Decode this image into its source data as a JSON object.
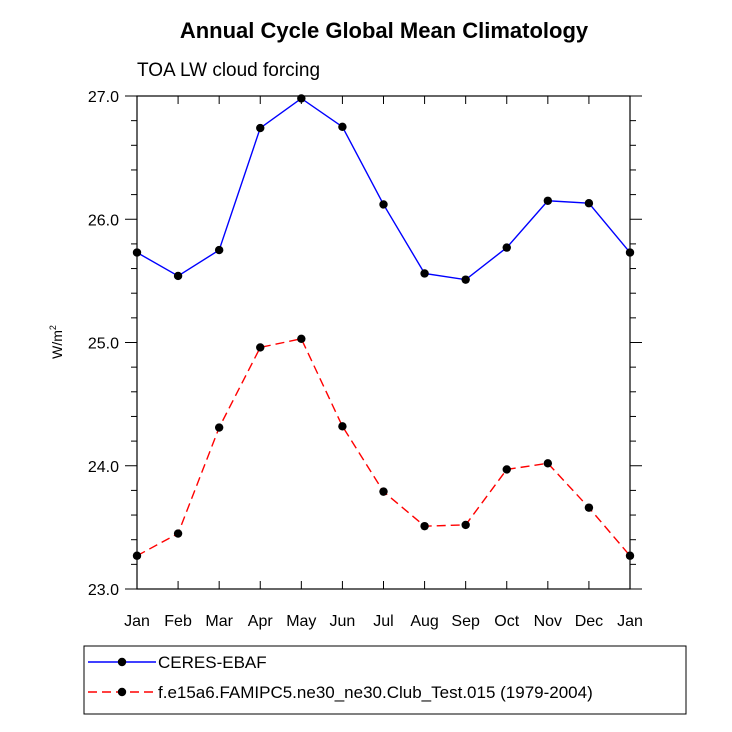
{
  "chart_data": {
    "type": "line",
    "title": "Annual Cycle Global Mean Climatology",
    "subtitle": "TOA LW cloud forcing",
    "ylabel": "W/m",
    "ylabel_sup": "2",
    "xlabel": "",
    "categories": [
      "Jan",
      "Feb",
      "Mar",
      "Apr",
      "May",
      "Jun",
      "Jul",
      "Aug",
      "Sep",
      "Oct",
      "Nov",
      "Dec",
      "Jan"
    ],
    "ylim": [
      23.0,
      27.0
    ],
    "yticks": [
      23.0,
      24.0,
      25.0,
      26.0,
      27.0
    ],
    "ytick_labels": [
      "23.0",
      "24.0",
      "25.0",
      "26.0",
      "27.0"
    ],
    "grid": false,
    "legend_position": "bottom",
    "series": [
      {
        "name": "CERES-EBAF",
        "color": "#0000ff",
        "dash": "solid",
        "values": [
          25.73,
          25.54,
          25.75,
          26.74,
          26.98,
          26.75,
          26.12,
          25.56,
          25.51,
          25.77,
          26.15,
          26.13,
          25.73
        ]
      },
      {
        "name": "f.e15a6.FAMIPC5.ne30_ne30.Club_Test.015 (1979-2004)",
        "color": "#ff0000",
        "dash": "dashed",
        "values": [
          23.27,
          23.45,
          24.31,
          24.96,
          25.03,
          24.32,
          23.79,
          23.51,
          23.52,
          23.97,
          24.02,
          23.66,
          23.27
        ]
      }
    ]
  }
}
